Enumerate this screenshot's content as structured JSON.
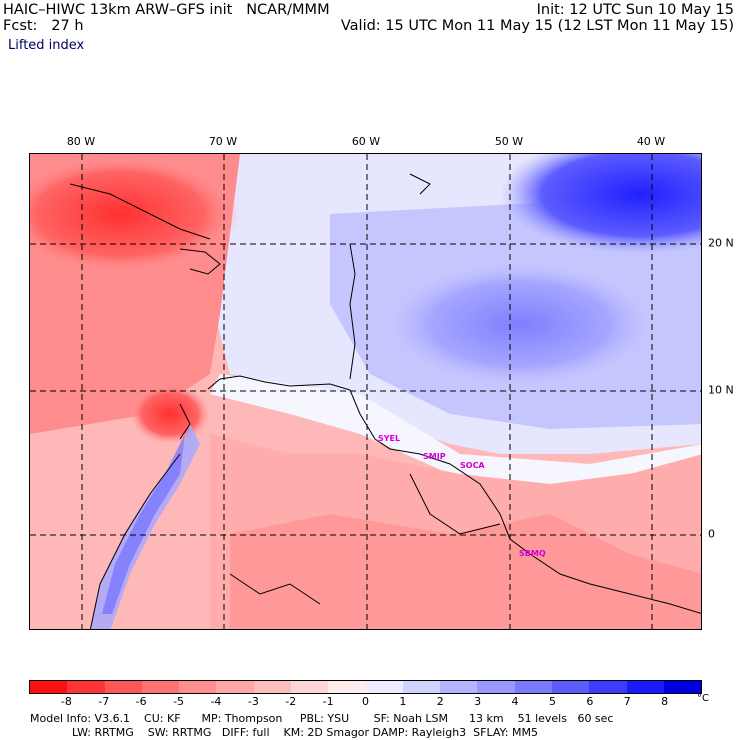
{
  "header": {
    "model_title": "HAIC–HIWC 13km ARW–GFS init   NCAR/MMM",
    "init": "Init: 12 UTC Sun 10 May 15",
    "fcst": "Fcst:   27 h",
    "valid": "Valid: 15 UTC Mon 11 May 15 (12 LST Mon 11 May 15)",
    "field": "Lifted index"
  },
  "lon_labels": [
    "80 W",
    "70 W",
    "60 W",
    "50 W",
    "40 W"
  ],
  "lat_labels": [
    "20 N",
    "10 N",
    "0"
  ],
  "stations": [
    "SYEL",
    "SMJP",
    "SOCA",
    "SBMQ"
  ],
  "colorbar": {
    "labels": [
      "-8",
      "-7",
      "-6",
      "-5",
      "-4",
      "-3",
      "-2",
      "-1",
      "0",
      "1",
      "2",
      "3",
      "4",
      "5",
      "6",
      "7",
      "8"
    ],
    "unit": "°C",
    "colors": [
      "#ff1010",
      "#ff3535",
      "#ff5757",
      "#ff7373",
      "#ff8e8e",
      "#ffa6a6",
      "#ffbebe",
      "#ffd6d6",
      "#ffeded",
      "#ededff",
      "#d2d2ff",
      "#b5b5ff",
      "#9898ff",
      "#7a7aff",
      "#5c5cff",
      "#3c3cff",
      "#1a1aff",
      "#0000e0"
    ]
  },
  "footer": {
    "line1": "Model Info: V3.6.1    CU: KF      MP: Thompson     PBL: YSU       SF: Noah LSM      13 km    51 levels   60 sec",
    "line2": "            LW: RRTMG    SW: RRTMG   DIFF: full    KM: 2D Smagor DAMP: Rayleigh3  SFLAY: MM5"
  }
}
